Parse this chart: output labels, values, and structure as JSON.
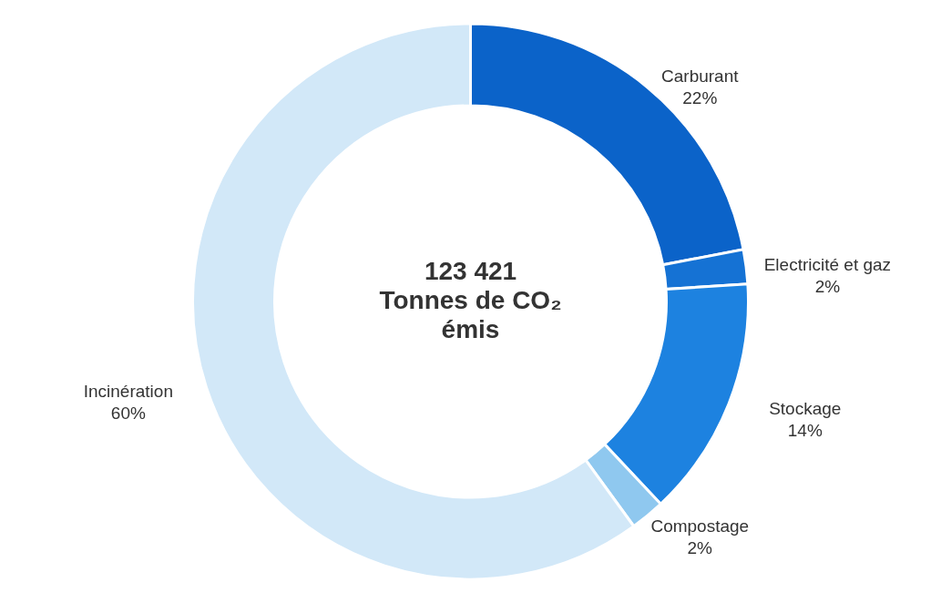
{
  "chart_data": {
    "type": "donut",
    "categories": [
      "Carburant",
      "Electricité et gaz",
      "Stockage",
      "Compostage",
      "Incinération"
    ],
    "values": [
      22,
      2,
      14,
      2,
      60
    ],
    "value_labels": [
      "22%",
      "2%",
      "14%",
      "2%",
      "60%"
    ],
    "colors": [
      "#0b63c9",
      "#1572d4",
      "#1d82e0",
      "#8fc8ef",
      "#d2e8f8"
    ],
    "annotations": [
      "123 421",
      "Tonnes de CO₂",
      "émis"
    ]
  }
}
